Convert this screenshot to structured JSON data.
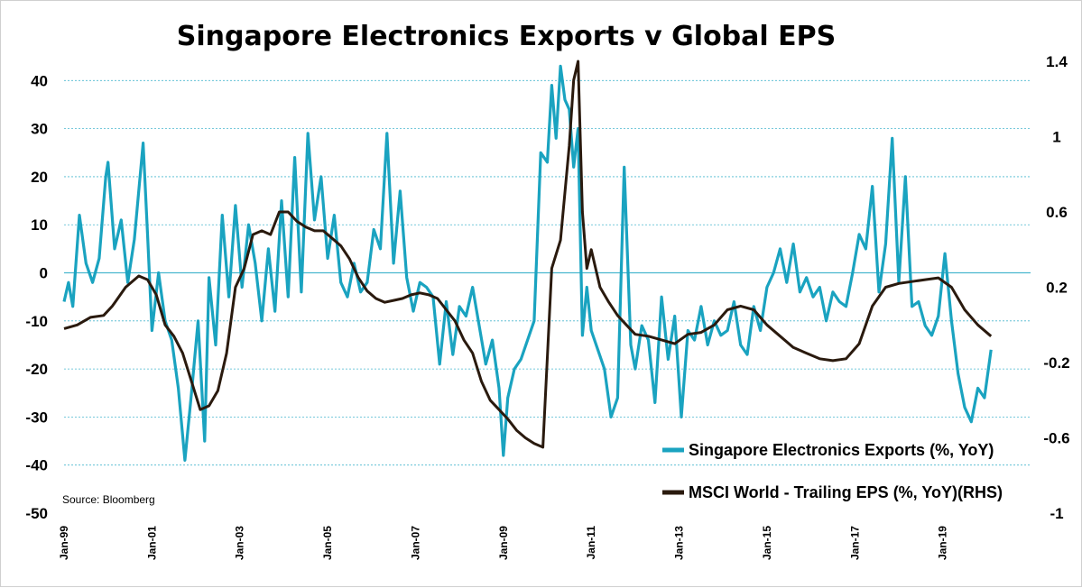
{
  "chart_data": {
    "type": "line",
    "title": "Singapore Electronics Exports v Global EPS",
    "source": "Source:  Bloomberg",
    "colors": {
      "series1": "#1aa3c0",
      "series2": "#2a1a0e",
      "grid": "#4ab7cf",
      "zero": "#4ab7cf"
    },
    "y_left": {
      "ticks": [
        40,
        30,
        20,
        10,
        0,
        -10,
        -20,
        -30,
        -40,
        -50
      ],
      "ylim": [
        -50,
        44
      ]
    },
    "y_right": {
      "ticks": [
        1.4,
        1,
        0.6,
        0.2,
        -0.2,
        -0.6,
        -1
      ],
      "ylim": [
        -1,
        1.4
      ]
    },
    "x_ticks": [
      "Jan-99",
      "Jan-01",
      "Jan-03",
      "Jan-05",
      "Jan-07",
      "Jan-09",
      "Jan-11",
      "Jan-13",
      "Jan-15",
      "Jan-17",
      "Jan-19"
    ],
    "x_start_year": 1999,
    "x_end_year": 2021,
    "series": [
      {
        "name": "Singapore Electronics Exports (%, YoY)",
        "axis": "left",
        "x": [
          1999.0,
          1999.1,
          1999.2,
          1999.35,
          1999.5,
          1999.65,
          1999.8,
          1999.95,
          2000.0,
          2000.15,
          2000.3,
          2000.45,
          2000.6,
          2000.8,
          2000.9,
          2001.0,
          2001.15,
          2001.3,
          2001.45,
          2001.6,
          2001.75,
          2001.9,
          2002.05,
          2002.2,
          2002.3,
          2002.45,
          2002.6,
          2002.75,
          2002.9,
          2003.05,
          2003.2,
          2003.35,
          2003.5,
          2003.65,
          2003.8,
          2003.95,
          2004.1,
          2004.25,
          2004.4,
          2004.55,
          2004.7,
          2004.85,
          2005.0,
          2005.15,
          2005.3,
          2005.45,
          2005.6,
          2005.75,
          2005.9,
          2006.05,
          2006.2,
          2006.35,
          2006.5,
          2006.65,
          2006.8,
          2006.95,
          2007.1,
          2007.25,
          2007.4,
          2007.55,
          2007.7,
          2007.85,
          2008.0,
          2008.15,
          2008.3,
          2008.45,
          2008.6,
          2008.75,
          2008.9,
          2009.0,
          2009.1,
          2009.25,
          2009.4,
          2009.55,
          2009.7,
          2009.85,
          2010.0,
          2010.1,
          2010.2,
          2010.3,
          2010.4,
          2010.5,
          2010.6,
          2010.7,
          2010.8,
          2010.9,
          2011.0,
          2011.15,
          2011.3,
          2011.45,
          2011.6,
          2011.75,
          2011.9,
          2012.0,
          2012.15,
          2012.3,
          2012.45,
          2012.6,
          2012.75,
          2012.9,
          2013.05,
          2013.2,
          2013.35,
          2013.5,
          2013.65,
          2013.8,
          2013.95,
          2014.1,
          2014.25,
          2014.4,
          2014.55,
          2014.7,
          2014.85,
          2015.0,
          2015.15,
          2015.3,
          2015.45,
          2015.6,
          2015.75,
          2015.9,
          2016.05,
          2016.2,
          2016.35,
          2016.5,
          2016.65,
          2016.8,
          2016.95,
          2017.1,
          2017.25,
          2017.4,
          2017.55,
          2017.7,
          2017.85,
          2018.0,
          2018.15,
          2018.3,
          2018.45,
          2018.6,
          2018.75,
          2018.9,
          2019.05,
          2019.2,
          2019.35,
          2019.5,
          2019.65,
          2019.8,
          2019.95,
          2020.1
        ],
        "values": [
          -6,
          -2,
          -7,
          12,
          2,
          -2,
          3,
          20,
          23,
          5,
          11,
          -2,
          7,
          27,
          8,
          -12,
          0,
          -10,
          -14,
          -24,
          -39,
          -25,
          -10,
          -35,
          -1,
          -15,
          12,
          -5,
          14,
          -3,
          10,
          2,
          -10,
          5,
          -8,
          15,
          -5,
          24,
          -4,
          29,
          11,
          20,
          3,
          12,
          -2,
          -5,
          2,
          -4,
          -2,
          9,
          5,
          29,
          2,
          17,
          -1,
          -8,
          -2,
          -3,
          -5,
          -19,
          -6,
          -17,
          -7,
          -9,
          -3,
          -11,
          -19,
          -14,
          -24,
          -38,
          -26,
          -20,
          -18,
          -14,
          -10,
          25,
          23,
          39,
          28,
          43,
          36,
          34,
          22,
          30,
          -13,
          -3,
          -12,
          -16,
          -20,
          -30,
          -26,
          22,
          -15,
          -20,
          -11,
          -14,
          -27,
          -5,
          -18,
          -9,
          -30,
          -12,
          -14,
          -7,
          -15,
          -10,
          -13,
          -12,
          -6,
          -15,
          -17,
          -7,
          -12,
          -3,
          0,
          5,
          -2,
          6,
          -4,
          -1,
          -5,
          -3,
          -10,
          -4,
          -6,
          -7,
          0,
          8,
          5,
          18,
          -4,
          6,
          28,
          -2,
          20,
          -7,
          -6,
          -11,
          -13,
          -9,
          4,
          -10,
          -21,
          -28,
          -31,
          -24,
          -26,
          -16
        ]
      },
      {
        "name": "MSCI World - Trailing EPS (%, YoY)(RHS)",
        "axis": "right",
        "x": [
          1999.0,
          1999.3,
          1999.6,
          1999.9,
          2000.1,
          2000.4,
          2000.7,
          2000.9,
          2001.1,
          2001.3,
          2001.5,
          2001.7,
          2001.9,
          2002.1,
          2002.3,
          2002.5,
          2002.7,
          2002.9,
          2003.1,
          2003.3,
          2003.5,
          2003.7,
          2003.9,
          2004.1,
          2004.3,
          2004.5,
          2004.7,
          2004.9,
          2005.1,
          2005.3,
          2005.5,
          2005.7,
          2005.9,
          2006.1,
          2006.3,
          2006.5,
          2006.7,
          2006.9,
          2007.1,
          2007.3,
          2007.5,
          2007.7,
          2007.9,
          2008.1,
          2008.3,
          2008.5,
          2008.7,
          2008.9,
          2009.1,
          2009.3,
          2009.5,
          2009.7,
          2009.9,
          2010.1,
          2010.3,
          2010.5,
          2010.6,
          2010.7,
          2010.8,
          2010.9,
          2011.0,
          2011.2,
          2011.4,
          2011.6,
          2011.8,
          2012.0,
          2012.3,
          2012.6,
          2012.9,
          2013.2,
          2013.5,
          2013.8,
          2014.1,
          2014.4,
          2014.7,
          2015.0,
          2015.3,
          2015.6,
          2015.9,
          2016.2,
          2016.5,
          2016.8,
          2017.1,
          2017.4,
          2017.7,
          2018.0,
          2018.3,
          2018.6,
          2018.9,
          2019.2,
          2019.5,
          2019.8,
          2020.1
        ],
        "values": [
          -0.02,
          0.0,
          0.04,
          0.05,
          0.1,
          0.2,
          0.26,
          0.24,
          0.16,
          0.0,
          -0.06,
          -0.15,
          -0.3,
          -0.45,
          -0.43,
          -0.35,
          -0.15,
          0.2,
          0.3,
          0.48,
          0.5,
          0.48,
          0.6,
          0.6,
          0.55,
          0.52,
          0.5,
          0.5,
          0.46,
          0.42,
          0.35,
          0.25,
          0.18,
          0.14,
          0.12,
          0.13,
          0.14,
          0.16,
          0.17,
          0.16,
          0.14,
          0.08,
          0.02,
          -0.08,
          -0.15,
          -0.3,
          -0.4,
          -0.45,
          -0.5,
          -0.56,
          -0.6,
          -0.63,
          -0.65,
          0.3,
          0.45,
          0.95,
          1.3,
          1.4,
          0.6,
          0.3,
          0.4,
          0.2,
          0.12,
          0.05,
          0.0,
          -0.05,
          -0.06,
          -0.08,
          -0.1,
          -0.05,
          -0.04,
          0.0,
          0.08,
          0.1,
          0.08,
          0.0,
          -0.06,
          -0.12,
          -0.15,
          -0.18,
          -0.19,
          -0.18,
          -0.1,
          0.1,
          0.2,
          0.22,
          0.23,
          0.24,
          0.25,
          0.2,
          0.08,
          0.0,
          -0.06
        ]
      }
    ]
  }
}
